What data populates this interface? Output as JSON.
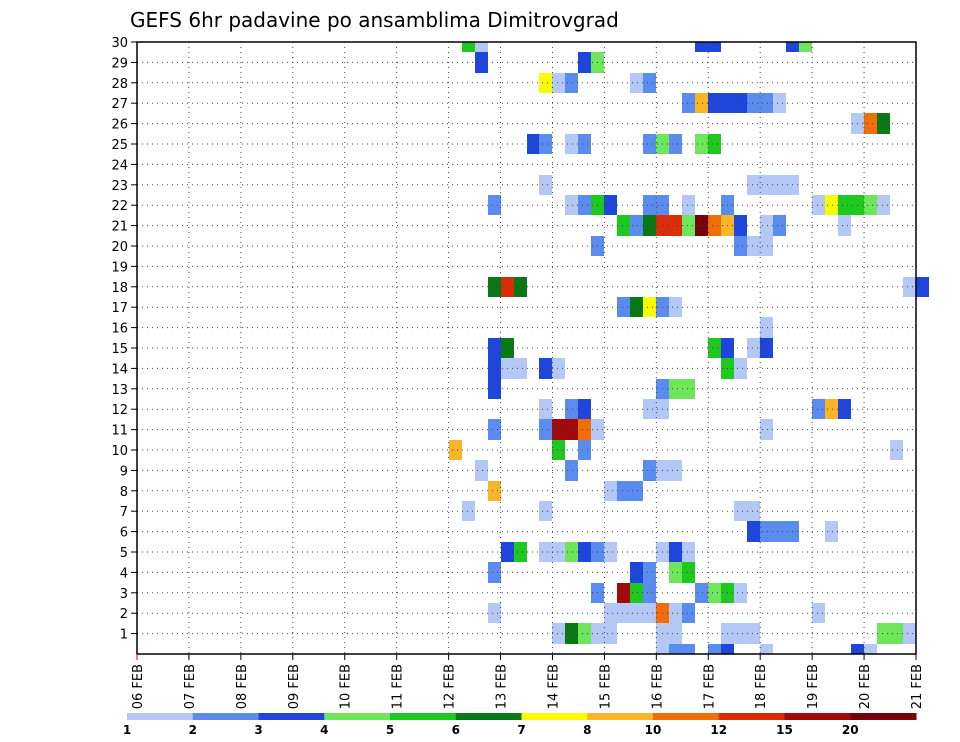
{
  "chart_data": {
    "type": "heatmap",
    "title": "GEFS 6hr padavine po ansamblima Dimitrovgrad",
    "xlabel": "",
    "ylabel": "",
    "x_range": [
      "06 FEB",
      "21 FEB"
    ],
    "x_ticks": [
      "06 FEB",
      "07 FEB",
      "08 FEB",
      "09 FEB",
      "10 FEB",
      "11 FEB",
      "12 FEB",
      "13 FEB",
      "14 FEB",
      "15 FEB",
      "16 FEB",
      "17 FEB",
      "18 FEB",
      "19 FEB",
      "20 FEB",
      "21 FEB"
    ],
    "y_ticks": [
      1,
      2,
      3,
      4,
      5,
      6,
      7,
      8,
      9,
      10,
      11,
      12,
      13,
      14,
      15,
      16,
      17,
      18,
      19,
      20,
      21,
      22,
      23,
      24,
      25,
      26,
      27,
      28,
      29,
      30
    ],
    "ylim": [
      0,
      30
    ],
    "grid": true,
    "colorbar": {
      "labels": [
        "1",
        "2",
        "3",
        "4",
        "5",
        "6",
        "7",
        "8",
        "10",
        "12",
        "15",
        "20"
      ],
      "colors": [
        "#b4c8f5",
        "#5a8cf0",
        "#1e46dc",
        "#6ee65a",
        "#1ec81e",
        "#0a7814",
        "#fafa00",
        "#fab428",
        "#f06e0a",
        "#dc2d0a",
        "#a00a0a",
        "#78000a"
      ]
    },
    "notes": "cells: [member, 6h step from 06 FEB 00Z, color class 0-11]",
    "cells": [
      [
        30,
        25,
        4
      ],
      [
        30,
        26,
        0
      ],
      [
        30,
        43,
        2
      ],
      [
        30,
        44,
        2
      ],
      [
        30,
        50,
        2
      ],
      [
        30,
        51,
        3
      ],
      [
        29,
        26,
        2
      ],
      [
        29,
        34,
        2
      ],
      [
        29,
        35,
        3
      ],
      [
        28,
        31,
        6
      ],
      [
        28,
        32,
        0
      ],
      [
        28,
        33,
        1
      ],
      [
        28,
        38,
        0
      ],
      [
        28,
        39,
        1
      ],
      [
        27,
        42,
        1
      ],
      [
        27,
        43,
        7
      ],
      [
        27,
        44,
        2
      ],
      [
        27,
        45,
        2
      ],
      [
        27,
        46,
        2
      ],
      [
        27,
        47,
        1
      ],
      [
        27,
        48,
        1
      ],
      [
        27,
        49,
        0
      ],
      [
        26,
        55,
        0
      ],
      [
        26,
        56,
        8
      ],
      [
        26,
        57,
        5
      ],
      [
        25,
        30,
        2
      ],
      [
        25,
        31,
        1
      ],
      [
        25,
        33,
        0
      ],
      [
        25,
        34,
        1
      ],
      [
        25,
        39,
        1
      ],
      [
        25,
        40,
        3
      ],
      [
        25,
        41,
        1
      ],
      [
        25,
        43,
        3
      ],
      [
        25,
        44,
        4
      ],
      [
        23,
        31,
        0
      ],
      [
        23,
        47,
        0
      ],
      [
        23,
        48,
        0
      ],
      [
        23,
        49,
        0
      ],
      [
        23,
        50,
        0
      ],
      [
        22,
        27,
        1
      ],
      [
        22,
        33,
        0
      ],
      [
        22,
        34,
        1
      ],
      [
        22,
        35,
        4
      ],
      [
        22,
        36,
        2
      ],
      [
        22,
        39,
        1
      ],
      [
        22,
        40,
        1
      ],
      [
        22,
        42,
        0
      ],
      [
        22,
        45,
        1
      ],
      [
        22,
        52,
        0
      ],
      [
        22,
        53,
        6
      ],
      [
        22,
        54,
        4
      ],
      [
        22,
        55,
        4
      ],
      [
        22,
        56,
        3
      ],
      [
        22,
        57,
        0
      ],
      [
        21,
        37,
        4
      ],
      [
        21,
        38,
        1
      ],
      [
        21,
        39,
        5
      ],
      [
        21,
        40,
        9
      ],
      [
        21,
        41,
        9
      ],
      [
        21,
        42,
        3
      ],
      [
        21,
        43,
        11
      ],
      [
        21,
        44,
        8
      ],
      [
        21,
        45,
        7
      ],
      [
        21,
        46,
        2
      ],
      [
        21,
        48,
        0
      ],
      [
        21,
        49,
        1
      ],
      [
        21,
        54,
        0
      ],
      [
        20,
        35,
        1
      ],
      [
        20,
        46,
        1
      ],
      [
        20,
        47,
        0
      ],
      [
        20,
        48,
        0
      ],
      [
        18,
        27,
        5
      ],
      [
        18,
        28,
        9
      ],
      [
        18,
        29,
        5
      ],
      [
        18,
        59,
        0
      ],
      [
        18,
        60,
        2
      ],
      [
        17,
        37,
        1
      ],
      [
        17,
        38,
        5
      ],
      [
        17,
        39,
        6
      ],
      [
        17,
        40,
        1
      ],
      [
        17,
        41,
        0
      ],
      [
        16,
        48,
        0
      ],
      [
        15,
        27,
        2
      ],
      [
        15,
        28,
        5
      ],
      [
        15,
        44,
        4
      ],
      [
        15,
        45,
        2
      ],
      [
        15,
        47,
        0
      ],
      [
        15,
        48,
        2
      ],
      [
        14,
        27,
        2
      ],
      [
        14,
        28,
        0
      ],
      [
        14,
        29,
        0
      ],
      [
        14,
        31,
        2
      ],
      [
        14,
        32,
        0
      ],
      [
        14,
        45,
        4
      ],
      [
        14,
        46,
        0
      ],
      [
        13,
        27,
        2
      ],
      [
        13,
        40,
        1
      ],
      [
        13,
        41,
        3
      ],
      [
        13,
        42,
        3
      ],
      [
        12,
        31,
        0
      ],
      [
        12,
        33,
        1
      ],
      [
        12,
        34,
        2
      ],
      [
        12,
        39,
        0
      ],
      [
        12,
        40,
        0
      ],
      [
        12,
        52,
        1
      ],
      [
        12,
        53,
        7
      ],
      [
        12,
        54,
        2
      ],
      [
        11,
        27,
        1
      ],
      [
        11,
        31,
        1
      ],
      [
        11,
        32,
        10
      ],
      [
        11,
        33,
        10
      ],
      [
        11,
        34,
        8
      ],
      [
        11,
        35,
        0
      ],
      [
        11,
        48,
        0
      ],
      [
        10,
        24,
        7
      ],
      [
        10,
        32,
        4
      ],
      [
        10,
        34,
        1
      ],
      [
        10,
        58,
        0
      ],
      [
        9,
        26,
        0
      ],
      [
        9,
        33,
        1
      ],
      [
        9,
        39,
        1
      ],
      [
        9,
        40,
        0
      ],
      [
        9,
        41,
        0
      ],
      [
        8,
        27,
        7
      ],
      [
        8,
        36,
        0
      ],
      [
        8,
        37,
        1
      ],
      [
        8,
        38,
        1
      ],
      [
        7,
        25,
        0
      ],
      [
        7,
        31,
        0
      ],
      [
        7,
        46,
        0
      ],
      [
        7,
        47,
        0
      ],
      [
        6,
        47,
        2
      ],
      [
        6,
        48,
        1
      ],
      [
        6,
        49,
        1
      ],
      [
        6,
        50,
        1
      ],
      [
        6,
        53,
        0
      ],
      [
        5,
        28,
        2
      ],
      [
        5,
        29,
        4
      ],
      [
        5,
        31,
        0
      ],
      [
        5,
        32,
        0
      ],
      [
        5,
        33,
        3
      ],
      [
        5,
        34,
        2
      ],
      [
        5,
        35,
        1
      ],
      [
        5,
        36,
        0
      ],
      [
        5,
        40,
        0
      ],
      [
        5,
        41,
        2
      ],
      [
        5,
        42,
        0
      ],
      [
        4,
        27,
        1
      ],
      [
        4,
        38,
        2
      ],
      [
        4,
        39,
        1
      ],
      [
        4,
        41,
        3
      ],
      [
        4,
        42,
        4
      ],
      [
        3,
        35,
        1
      ],
      [
        3,
        37,
        10
      ],
      [
        3,
        38,
        4
      ],
      [
        3,
        39,
        1
      ],
      [
        3,
        43,
        1
      ],
      [
        3,
        44,
        3
      ],
      [
        3,
        45,
        4
      ],
      [
        3,
        46,
        0
      ],
      [
        2,
        27,
        0
      ],
      [
        2,
        36,
        0
      ],
      [
        2,
        37,
        0
      ],
      [
        2,
        38,
        0
      ],
      [
        2,
        39,
        0
      ],
      [
        2,
        40,
        8
      ],
      [
        2,
        41,
        0
      ],
      [
        2,
        42,
        1
      ],
      [
        2,
        52,
        0
      ],
      [
        1,
        32,
        0
      ],
      [
        1,
        33,
        5
      ],
      [
        1,
        34,
        3
      ],
      [
        1,
        35,
        0
      ],
      [
        1,
        36,
        0
      ],
      [
        1,
        40,
        0
      ],
      [
        1,
        41,
        0
      ],
      [
        1,
        45,
        0
      ],
      [
        1,
        46,
        0
      ],
      [
        1,
        47,
        0
      ],
      [
        1,
        57,
        3
      ],
      [
        1,
        58,
        3
      ],
      [
        1,
        59,
        0
      ],
      [
        0,
        40,
        0
      ],
      [
        0,
        41,
        1
      ],
      [
        0,
        42,
        1
      ],
      [
        0,
        44,
        1
      ],
      [
        0,
        45,
        2
      ],
      [
        0,
        48,
        0
      ],
      [
        0,
        55,
        2
      ],
      [
        0,
        56,
        0
      ]
    ]
  }
}
